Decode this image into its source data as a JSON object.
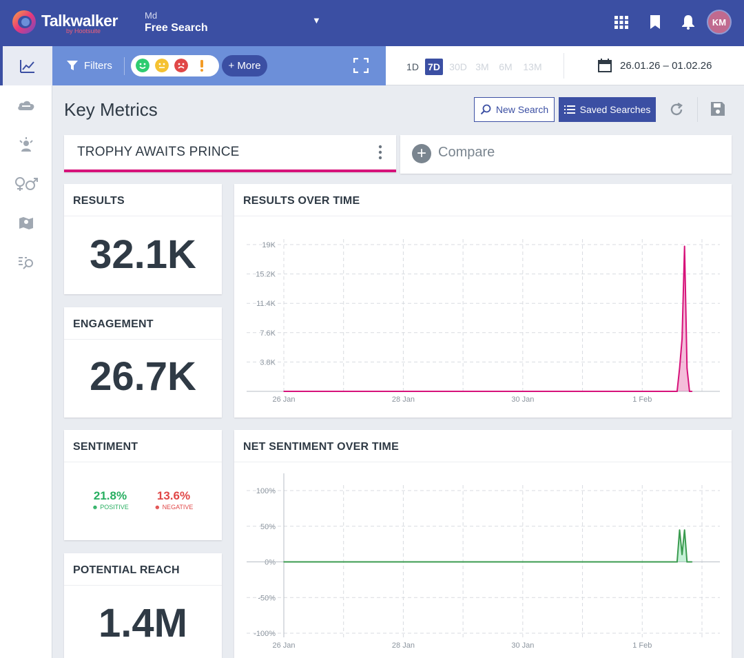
{
  "app": {
    "logo_text": "Talkwalker",
    "logo_sub": "by Hootsuite",
    "project_small": "Md",
    "project_name": "Free Search",
    "avatar_initials": "KM",
    "brand_color": "#3b4fa3",
    "accent_color": "#d6127a"
  },
  "sidebar": {
    "items": [
      {
        "icon": "line-chart-icon",
        "active": true
      },
      {
        "icon": "cloud-icon",
        "active": false
      },
      {
        "icon": "influencer-icon",
        "active": false
      },
      {
        "icon": "gender-icon",
        "active": false
      },
      {
        "icon": "map-icon",
        "active": false
      },
      {
        "icon": "search-list-icon",
        "active": false
      }
    ]
  },
  "filterbar": {
    "filters_label": "Filters",
    "more_label": "+ More",
    "sentiment_faces": [
      "positive",
      "neutral",
      "negative",
      "warning"
    ]
  },
  "datebar": {
    "ranges": [
      "1D",
      "7D",
      "30D",
      "3M",
      "6M",
      "13M"
    ],
    "selected_range": "7D",
    "date_range": "26.01.26 – 01.02.26"
  },
  "header": {
    "title": "Key Metrics",
    "new_search_label": "New Search",
    "saved_searches_label": "Saved Searches"
  },
  "query": {
    "name": "TROPHY AWAITS PRINCE",
    "compare_label": "Compare"
  },
  "metrics": {
    "results": {
      "title": "RESULTS",
      "value": "32.1K"
    },
    "engagement": {
      "title": "ENGAGEMENT",
      "value": "26.7K"
    },
    "sentiment": {
      "title": "SENTIMENT",
      "positive_pct": "21.8%",
      "positive_label": "POSITIVE",
      "negative_pct": "13.6%",
      "negative_label": "NEGATIVE",
      "positive_color": "#27ae60",
      "negative_color": "#e04747"
    },
    "reach": {
      "title": "POTENTIAL REACH",
      "value": "1.4M"
    }
  },
  "chart_data": [
    {
      "type": "area",
      "title": "RESULTS OVER TIME",
      "xlabel": "",
      "ylabel": "",
      "x_ticks": [
        "26 Jan",
        "28 Jan",
        "30 Jan",
        "1 Feb"
      ],
      "y_ticks": [
        "19K",
        "15.2K",
        "11.4K",
        "7.6K",
        "3.8K"
      ],
      "ylim": [
        0,
        19000
      ],
      "grid": true,
      "color": "#d6127a",
      "series": [
        {
          "x": [
            "2026-01-26",
            "2026-01-27",
            "2026-01-28",
            "2026-01-29",
            "2026-01-30",
            "2026-01-31",
            "2026-02-01",
            "2026-02-01 14:00",
            "2026-02-01 15:00",
            "2026-02-01 16:00",
            "2026-02-01 17:00",
            "2026-02-01 18:00",
            "2026-02-01 19:00",
            "2026-02-01 20:00"
          ],
          "values": [
            0,
            0,
            0,
            0,
            0,
            0,
            0,
            0,
            3000,
            6800,
            18800,
            3000,
            0,
            0
          ]
        }
      ]
    },
    {
      "type": "area",
      "title": "NET SENTIMENT OVER TIME",
      "xlabel": "",
      "ylabel": "",
      "x_ticks": [
        "26 Jan",
        "28 Jan",
        "30 Jan",
        "1 Feb"
      ],
      "y_ticks": [
        "100%",
        "50%",
        "0%",
        "-50%",
        "-100%"
      ],
      "ylim": [
        -100,
        100
      ],
      "grid": true,
      "color": "#2ecc71",
      "series": [
        {
          "x": [
            "2026-01-26",
            "2026-01-27",
            "2026-01-28",
            "2026-01-29",
            "2026-01-30",
            "2026-01-31",
            "2026-02-01",
            "2026-02-01 14:00",
            "2026-02-01 15:00",
            "2026-02-01 16:00",
            "2026-02-01 17:00",
            "2026-02-01 18:00",
            "2026-02-01 19:00",
            "2026-02-01 20:00"
          ],
          "values": [
            0,
            0,
            0,
            0,
            0,
            0,
            0,
            0,
            45,
            10,
            45,
            0,
            0,
            0
          ]
        }
      ]
    }
  ]
}
